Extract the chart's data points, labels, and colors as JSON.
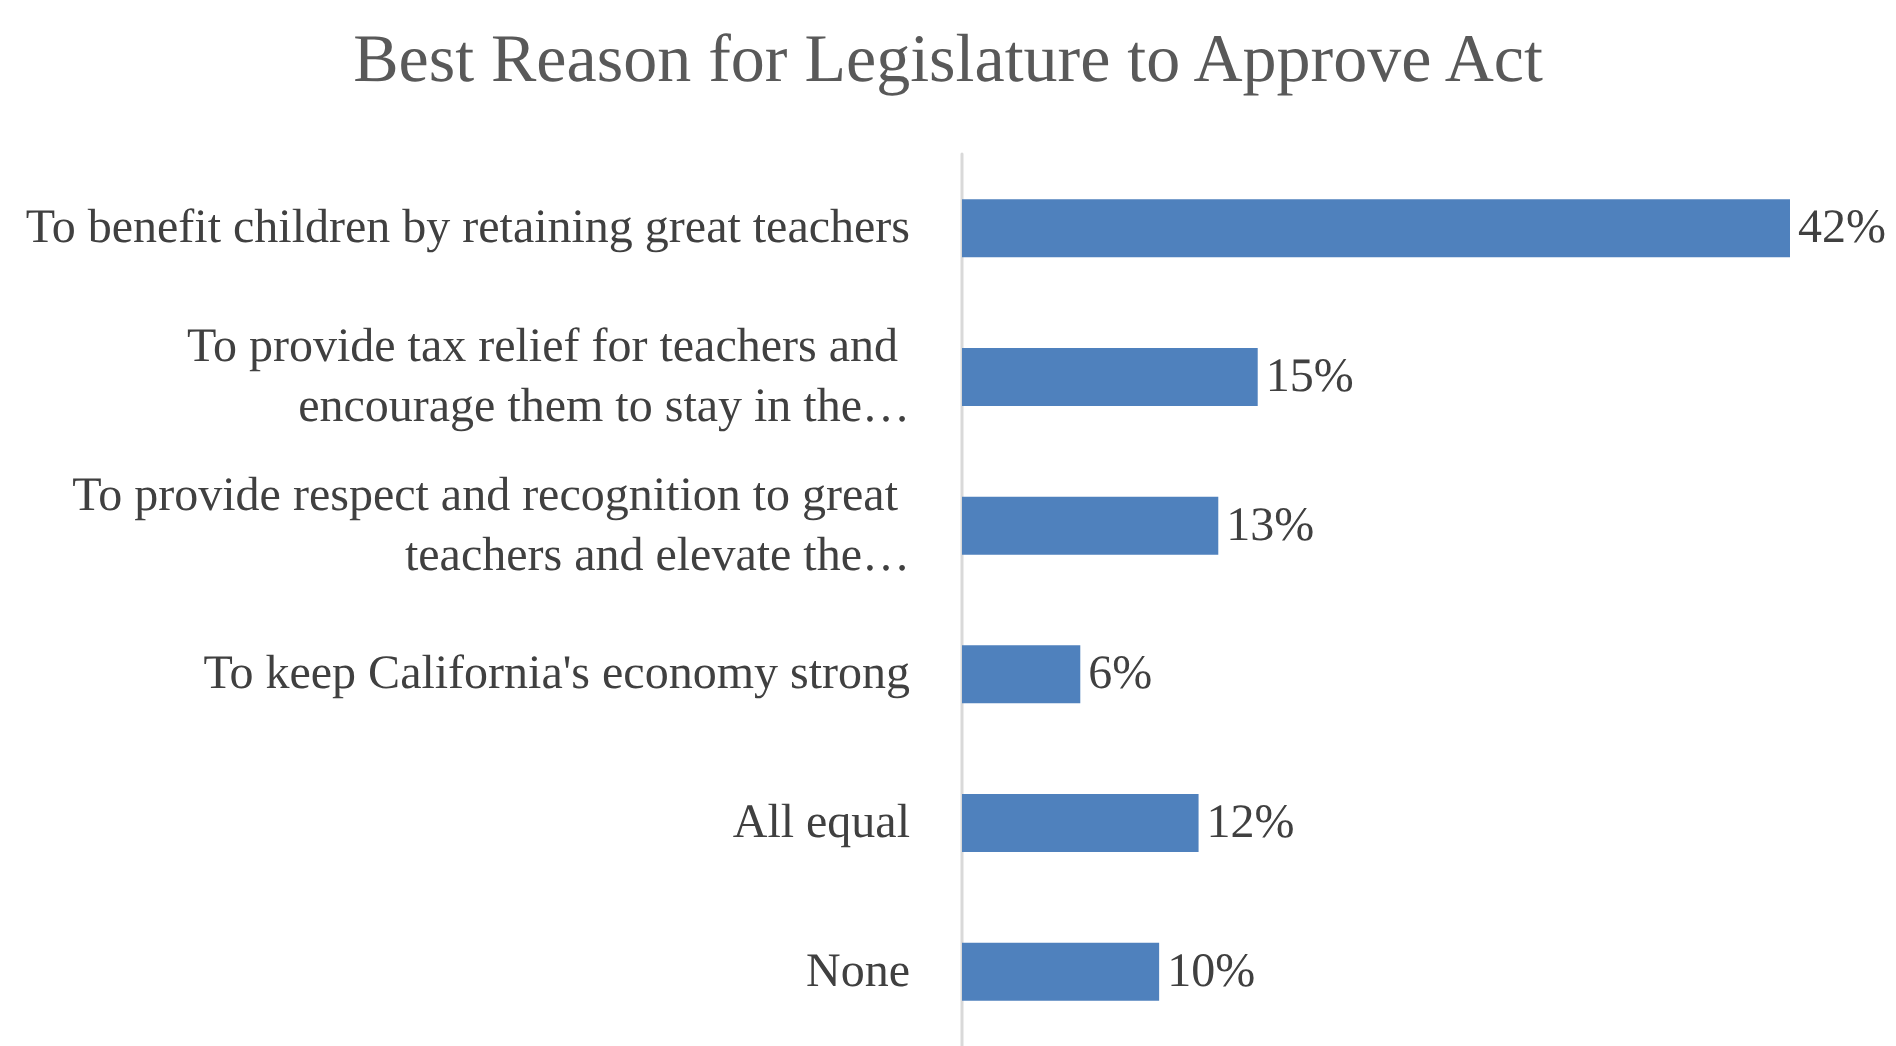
{
  "chart_data": {
    "type": "bar",
    "orientation": "horizontal",
    "title": "Best Reason for Legislature to Approve Act",
    "categories": [
      "To benefit children by retaining great teachers",
      "To provide tax relief for teachers and encourage them to stay in the…",
      "To provide respect and recognition to great teachers and elevate the…",
      "To keep California's economy strong",
      "All equal",
      "None"
    ],
    "values": [
      42,
      15,
      13,
      6,
      12,
      10
    ],
    "value_labels": [
      "42%",
      "15%",
      "13%",
      "6%",
      "12%",
      "10%"
    ],
    "color": "#4f81bd"
  }
}
